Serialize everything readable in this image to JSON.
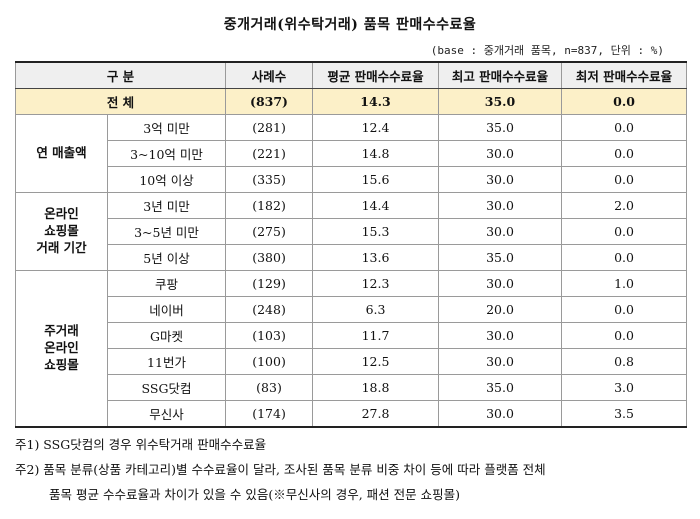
{
  "title": "중개거래(위수탁거래) 품목 판매수수료율",
  "unit_note": "(base : 중개거래 품목, n=837, 단위 : %)",
  "table": {
    "headers": {
      "category": "구 분",
      "n": "사례수",
      "avg": "평균 판매수수료율",
      "max": "최고 판매수수료율",
      "min": "최저 판매수수료율"
    },
    "total": {
      "label": "전 체",
      "n": "(837)",
      "avg": "14.3",
      "max": "35.0",
      "min": "0.0"
    },
    "groups": [
      {
        "label": "연 매출액",
        "rows": [
          {
            "sub": "3억 미만",
            "n": "(281)",
            "avg": "12.4",
            "max": "35.0",
            "min": "0.0"
          },
          {
            "sub": "3~10억 미만",
            "n": "(221)",
            "avg": "14.8",
            "max": "30.0",
            "min": "0.0"
          },
          {
            "sub": "10억 이상",
            "n": "(335)",
            "avg": "15.6",
            "max": "30.0",
            "min": "0.0"
          }
        ]
      },
      {
        "label": "온라인 쇼핑몰 거래 기간",
        "label_lines": [
          "온라인",
          "쇼핑몰",
          "거래 기간"
        ],
        "rows": [
          {
            "sub": "3년 미만",
            "n": "(182)",
            "avg": "14.4",
            "max": "30.0",
            "min": "2.0"
          },
          {
            "sub": "3~5년 미만",
            "n": "(275)",
            "avg": "15.3",
            "max": "30.0",
            "min": "0.0"
          },
          {
            "sub": "5년 이상",
            "n": "(380)",
            "avg": "13.6",
            "max": "35.0",
            "min": "0.0"
          }
        ]
      },
      {
        "label": "주거래 온라인 쇼핑몰",
        "label_lines": [
          "주거래",
          "온라인",
          "쇼핑몰"
        ],
        "rows": [
          {
            "sub": "쿠팡",
            "n": "(129)",
            "avg": "12.3",
            "max": "30.0",
            "min": "1.0"
          },
          {
            "sub": "네이버",
            "n": "(248)",
            "avg": "6.3",
            "max": "20.0",
            "min": "0.0"
          },
          {
            "sub": "G마켓",
            "n": "(103)",
            "avg": "11.7",
            "max": "30.0",
            "min": "0.0"
          },
          {
            "sub": "11번가",
            "n": "(100)",
            "avg": "12.5",
            "max": "30.0",
            "min": "0.8"
          },
          {
            "sub": "SSG닷컴",
            "n": "(83)",
            "avg": "18.8",
            "max": "35.0",
            "min": "3.0"
          },
          {
            "sub": "무신사",
            "n": "(174)",
            "avg": "27.8",
            "max": "30.0",
            "min": "3.5"
          }
        ]
      }
    ]
  },
  "notes": {
    "note1": "주1) SSG닷컴의 경우 위수탁거래 판매수수료율",
    "note2_line1": "주2) 품목 분류(상품 카테고리)별 수수료율이 달라, 조사된 품목 분류 비중 차이 등에 따라 플랫폼 전체",
    "note2_line2": "품목 평균 수수료율과 차이가 있을 수 있음(※무신사의 경우, 패션 전문 쇼핑몰)"
  }
}
